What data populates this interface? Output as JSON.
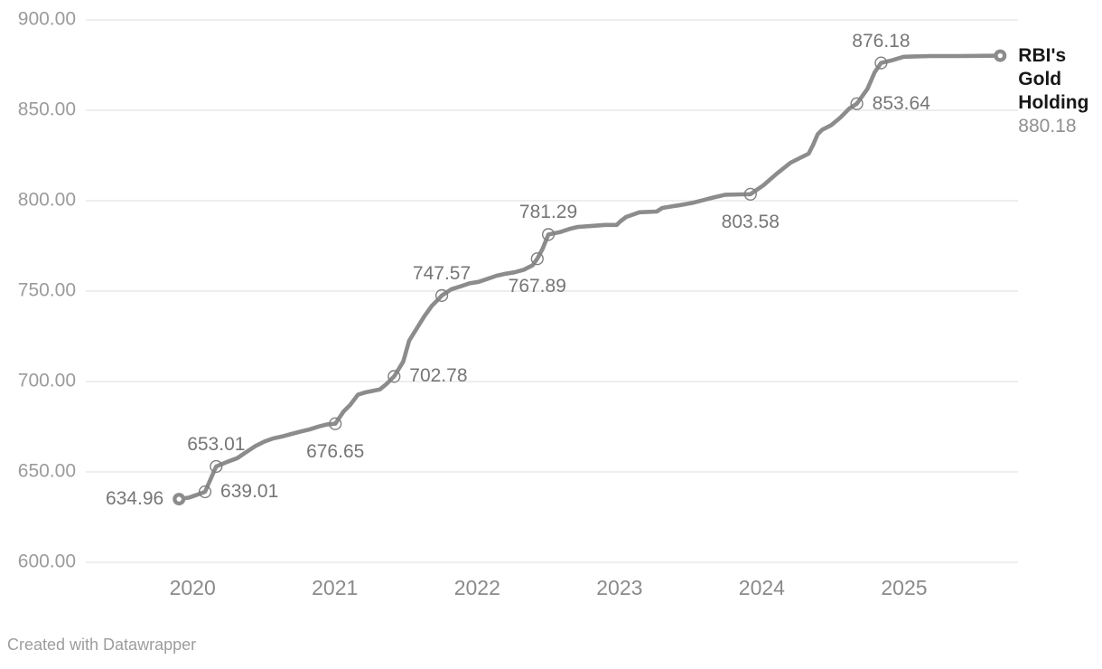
{
  "chart_data": {
    "type": "line",
    "title": "",
    "series_name": "RBI's Gold Holding",
    "legend_lines": [
      "RBI's",
      "Gold",
      "Holding"
    ],
    "legend_value": "880.18",
    "legend_position": "end-of-line-right",
    "grid": "horizontal-only",
    "xlim": [
      2019.25,
      2025.8
    ],
    "ylim": [
      600,
      900
    ],
    "x_ticks": [
      {
        "year": 2020,
        "label": "2020"
      },
      {
        "year": 2021,
        "label": "2021"
      },
      {
        "year": 2022,
        "label": "2022"
      },
      {
        "year": 2023,
        "label": "2023"
      },
      {
        "year": 2024,
        "label": "2024"
      },
      {
        "year": 2025,
        "label": "2025"
      }
    ],
    "y_ticks": [
      {
        "value": 600,
        "label": "600.00"
      },
      {
        "value": 650,
        "label": "650.00"
      },
      {
        "value": 700,
        "label": "700.00"
      },
      {
        "value": 750,
        "label": "750.00"
      },
      {
        "value": 800,
        "label": "800.00"
      },
      {
        "value": 850,
        "label": "850.00"
      },
      {
        "value": 900,
        "label": "900.00"
      }
    ],
    "points": [
      [
        2019.905,
        634.96
      ],
      [
        2019.975,
        635.8
      ],
      [
        2020.026,
        637.2
      ],
      [
        2020.088,
        639.01
      ],
      [
        2020.166,
        653.01
      ],
      [
        2020.242,
        655.5
      ],
      [
        2020.314,
        657.6
      ],
      [
        2020.378,
        661.0
      ],
      [
        2020.441,
        664.3
      ],
      [
        2020.505,
        666.8
      ],
      [
        2020.566,
        668.5
      ],
      [
        2020.63,
        669.6
      ],
      [
        2020.695,
        671.0
      ],
      [
        2020.759,
        672.3
      ],
      [
        2020.822,
        673.5
      ],
      [
        2020.886,
        675.1
      ],
      [
        2020.941,
        676.2
      ],
      [
        2021.003,
        676.65
      ],
      [
        2021.062,
        683.5
      ],
      [
        2021.107,
        687.0
      ],
      [
        2021.162,
        692.7
      ],
      [
        2021.215,
        694.0
      ],
      [
        2021.278,
        695.0
      ],
      [
        2021.316,
        695.6
      ],
      [
        2021.361,
        698.5
      ],
      [
        2021.416,
        702.78
      ],
      [
        2021.48,
        711.0
      ],
      [
        2021.522,
        722.6
      ],
      [
        2021.575,
        729.3
      ],
      [
        2021.628,
        736.0
      ],
      [
        2021.681,
        741.8
      ],
      [
        2021.723,
        745.1
      ],
      [
        2021.751,
        747.57
      ],
      [
        2021.818,
        751.0
      ],
      [
        2021.882,
        752.6
      ],
      [
        2021.946,
        754.3
      ],
      [
        2022.009,
        755.1
      ],
      [
        2022.073,
        756.8
      ],
      [
        2022.136,
        758.5
      ],
      [
        2022.2,
        759.6
      ],
      [
        2022.263,
        760.4
      ],
      [
        2022.327,
        761.8
      ],
      [
        2022.39,
        764.3
      ],
      [
        2022.422,
        767.89
      ],
      [
        2022.46,
        773.5
      ],
      [
        2022.5,
        781.29
      ],
      [
        2022.581,
        782.6
      ],
      [
        2022.645,
        784.3
      ],
      [
        2022.708,
        785.5
      ],
      [
        2022.816,
        786.1
      ],
      [
        2022.899,
        786.6
      ],
      [
        2022.981,
        786.6
      ],
      [
        2023.005,
        788.5
      ],
      [
        2023.047,
        791.0
      ],
      [
        2023.14,
        793.6
      ],
      [
        2023.261,
        794.0
      ],
      [
        2023.301,
        796.0
      ],
      [
        2023.365,
        796.8
      ],
      [
        2023.428,
        797.6
      ],
      [
        2023.513,
        798.8
      ],
      [
        2023.577,
        800.1
      ],
      [
        2023.662,
        801.8
      ],
      [
        2023.744,
        803.3
      ],
      [
        2023.852,
        803.5
      ],
      [
        2023.92,
        803.58
      ],
      [
        2024.011,
        808.5
      ],
      [
        2024.107,
        815.1
      ],
      [
        2024.202,
        821.0
      ],
      [
        2024.265,
        823.5
      ],
      [
        2024.329,
        826.0
      ],
      [
        2024.361,
        831.0
      ],
      [
        2024.393,
        836.8
      ],
      [
        2024.425,
        839.3
      ],
      [
        2024.488,
        841.8
      ],
      [
        2024.552,
        846.0
      ],
      [
        2024.615,
        851.0
      ],
      [
        2024.668,
        853.64
      ],
      [
        2024.742,
        861.8
      ],
      [
        2024.793,
        871.0
      ],
      [
        2024.838,
        876.18
      ],
      [
        2024.912,
        877.6
      ],
      [
        2024.997,
        879.6
      ],
      [
        2025.187,
        880.0
      ],
      [
        2025.378,
        880.0
      ],
      [
        2025.675,
        880.18
      ]
    ],
    "annotations": [
      {
        "x": 2019.905,
        "v": 634.96,
        "text": "634.96",
        "pos": "left"
      },
      {
        "x": 2020.088,
        "v": 639.01,
        "text": "639.01",
        "pos": "right"
      },
      {
        "x": 2020.166,
        "v": 653.01,
        "text": "653.01",
        "pos": "above"
      },
      {
        "x": 2021.003,
        "v": 676.65,
        "text": "676.65",
        "pos": "below"
      },
      {
        "x": 2021.416,
        "v": 702.78,
        "text": "702.78",
        "pos": "right"
      },
      {
        "x": 2021.751,
        "v": 747.57,
        "text": "747.57",
        "pos": "above"
      },
      {
        "x": 2022.422,
        "v": 767.89,
        "text": "767.89",
        "pos": "below"
      },
      {
        "x": 2022.5,
        "v": 781.29,
        "text": "781.29",
        "pos": "above"
      },
      {
        "x": 2023.92,
        "v": 803.58,
        "text": "803.58",
        "pos": "below"
      },
      {
        "x": 2024.668,
        "v": 853.64,
        "text": "853.64",
        "pos": "right"
      },
      {
        "x": 2024.838,
        "v": 876.18,
        "text": "876.18",
        "pos": "above"
      }
    ]
  },
  "colors": {
    "line": "#8c8c8c",
    "marker_stroke": "#7f7f7f",
    "grid": "#dedede",
    "background": "#ffffff",
    "y_tick_text": "#9b9b9b",
    "x_tick_text": "#8a8a8a",
    "point_label_text": "#767676",
    "legend_title_text": "#181818",
    "legend_value_text": "#8f8f8f",
    "attribution_text": "#9d9d9d"
  },
  "attribution": {
    "text": "Created with Datawrapper"
  }
}
